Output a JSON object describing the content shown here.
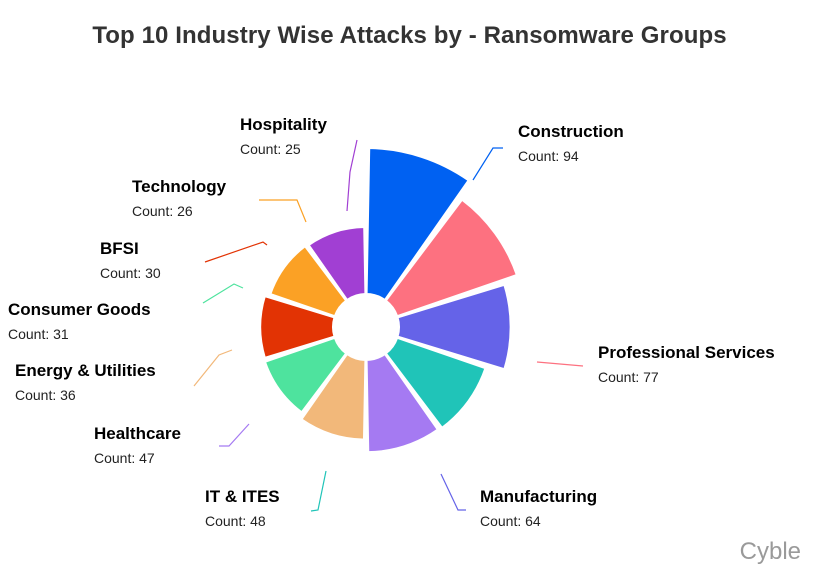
{
  "title": "Top 10 Industry Wise Attacks by - Ransomware Groups",
  "watermark": "Cyble",
  "count_prefix": "Count: ",
  "chart_data": {
    "type": "pie",
    "subtype": "nightingale-rose",
    "title": "Top 10 Industry Wise Attacks by - Ransomware Groups",
    "categories": [
      "Construction",
      "Professional Services",
      "Manufacturing",
      "IT & ITES",
      "Healthcare",
      "Energy & Utilities",
      "Consumer Goods",
      "BFSI",
      "Technology",
      "Hospitality"
    ],
    "values": [
      94,
      77,
      64,
      48,
      47,
      36,
      31,
      30,
      26,
      25
    ],
    "colors": [
      "#0061f2",
      "#fd7180",
      "#6563e8",
      "#20c4b8",
      "#a57af2",
      "#f2b87a",
      "#4ee39e",
      "#e23304",
      "#fba125",
      "#a13fd3"
    ],
    "legend": "none (labels with leader lines)"
  },
  "labels": [
    {
      "name": "Construction",
      "count": "Count: 94"
    },
    {
      "name": "Professional Services",
      "count": "Count: 77"
    },
    {
      "name": "Manufacturing",
      "count": "Count: 64"
    },
    {
      "name": "IT & ITES",
      "count": "Count: 48"
    },
    {
      "name": "Healthcare",
      "count": "Count: 47"
    },
    {
      "name": "Energy & Utilities",
      "count": "Count: 36"
    },
    {
      "name": "Consumer Goods",
      "count": "Count: 31"
    },
    {
      "name": "BFSI",
      "count": "Count: 30"
    },
    {
      "name": "Technology",
      "count": "Count: 26"
    },
    {
      "name": "Hospitality",
      "count": "Count: 25"
    }
  ]
}
